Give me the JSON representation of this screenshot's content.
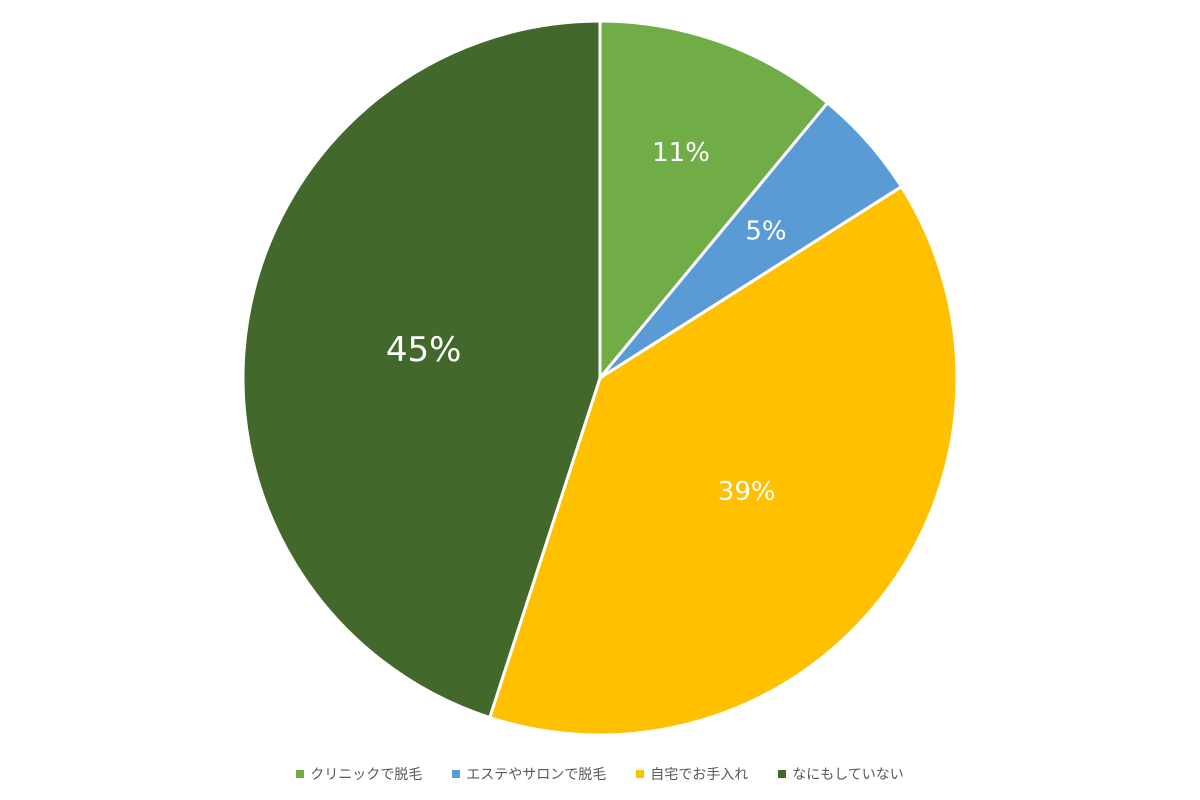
{
  "chart_data": {
    "type": "pie",
    "title": "",
    "start_angle_deg": 0,
    "direction": "clockwise",
    "legend_position": "bottom",
    "slices": [
      {
        "label": "クリニックで脱毛",
        "value": 11,
        "display": "11%",
        "color": "#70AD47"
      },
      {
        "label": "エステやサロンで脱毛",
        "value": 5,
        "display": "5%",
        "color": "#5B9BD5"
      },
      {
        "label": "自宅でお手入れ",
        "value": 39,
        "display": "39%",
        "color": "#FFC000"
      },
      {
        "label": "なにもしていない",
        "value": 45,
        "display": "45%",
        "color": "#43682B"
      }
    ]
  },
  "legend": {
    "items": [
      {
        "label": "クリニックで脱毛",
        "color": "#70AD47"
      },
      {
        "label": "エステやサロンで脱毛",
        "color": "#5B9BD5"
      },
      {
        "label": "自宅でお手入れ",
        "color": "#FFC000"
      },
      {
        "label": "なにもしていない",
        "color": "#43682B"
      }
    ]
  }
}
